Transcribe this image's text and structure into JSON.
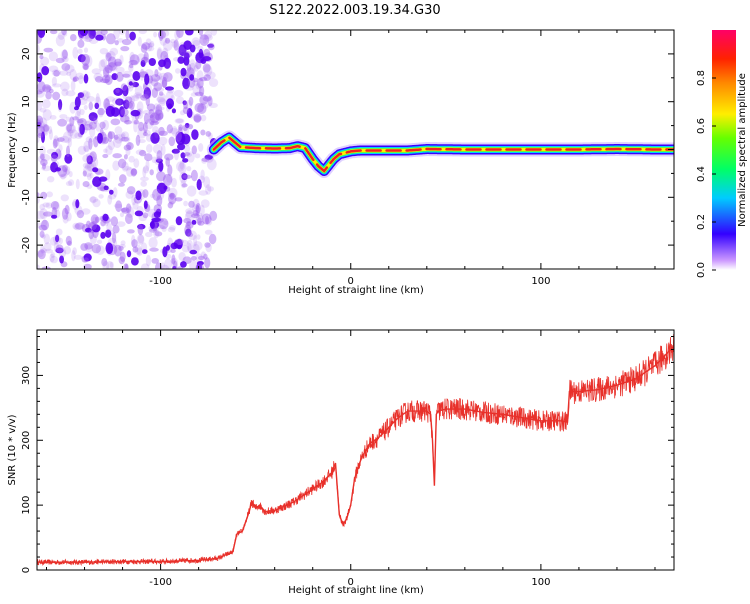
{
  "figure": {
    "title": "S122.2022.003.19.34.G30"
  },
  "chart_data": [
    {
      "type": "heatmap",
      "xlabel": "Height of straight line (km)",
      "ylabel": "Frequency (Hz)",
      "xlim": [
        -165,
        170
      ],
      "ylim": [
        -25,
        25
      ],
      "x_ticks": [
        -100,
        0,
        100
      ],
      "y_ticks": [
        -20,
        -10,
        0,
        10,
        20
      ],
      "x_tick_labels": [
        "-100",
        "0",
        "100"
      ],
      "y_tick_labels": [
        "-20",
        "-10",
        "0",
        "10",
        "20"
      ],
      "noise_region": {
        "x_from": -165,
        "x_to": -72,
        "description_color": "#6a00ff"
      },
      "ridge": {
        "x": [
          -72,
          -68,
          -64,
          -61,
          -58,
          -50,
          -40,
          -32,
          -28,
          -24,
          -20,
          -17,
          -14,
          -12,
          -9,
          -6,
          -3,
          0,
          5,
          10,
          20,
          30,
          40,
          60,
          80,
          100,
          120,
          140,
          160,
          170
        ],
        "y": [
          0,
          1.5,
          2.5,
          1.5,
          0.5,
          0.3,
          0.2,
          0.3,
          0.7,
          0.3,
          -2.0,
          -3.5,
          -4.5,
          -3.5,
          -2.0,
          -1.0,
          -0.7,
          -0.4,
          -0.2,
          -0.2,
          -0.2,
          -0.2,
          0.1,
          0.0,
          0.0,
          0.0,
          0.0,
          0.1,
          0.0,
          0.0
        ]
      },
      "colorbar": {
        "label": "Normalized spectral amplitude",
        "range": [
          0,
          1
        ],
        "ticks": [
          0.0,
          0.2,
          0.4,
          0.6,
          0.8
        ],
        "tick_labels": [
          "0.0",
          "0.2",
          "0.4",
          "0.6",
          "0.8"
        ]
      }
    },
    {
      "type": "line",
      "xlabel": "Height of straight line (km)",
      "ylabel": "SNR (10 * v/v)",
      "xlim": [
        -165,
        170
      ],
      "ylim": [
        0,
        370
      ],
      "x_ticks": [
        -100,
        0,
        100
      ],
      "y_ticks": [
        0,
        100,
        200,
        300
      ],
      "x_tick_labels": [
        "-100",
        "0",
        "100"
      ],
      "y_tick_labels": [
        "0",
        "100",
        "200",
        "300"
      ],
      "color": "#e8302a",
      "series": [
        {
          "x": [
            -165,
            -140,
            -120,
            -100,
            -80,
            -70,
            -62,
            -60,
            -57,
            -54,
            -52,
            -50,
            -48,
            -45,
            -40,
            -35,
            -30,
            -25,
            -20,
            -15,
            -10,
            -8,
            -6,
            -4,
            -2,
            0,
            2,
            4,
            6,
            8,
            10,
            15,
            20,
            25,
            30,
            35,
            40,
            42,
            43,
            44,
            45,
            46,
            50,
            60,
            70,
            80,
            90,
            100,
            110,
            114,
            115,
            120,
            130,
            140,
            150,
            160,
            165,
            170
          ],
          "y": [
            12,
            12,
            13,
            13,
            15,
            18,
            28,
            55,
            60,
            85,
            105,
            95,
            100,
            90,
            92,
            98,
            105,
            115,
            125,
            135,
            150,
            165,
            85,
            70,
            80,
            100,
            140,
            160,
            175,
            185,
            195,
            205,
            220,
            235,
            245,
            245,
            245,
            240,
            200,
            130,
            240,
            245,
            248,
            248,
            243,
            240,
            235,
            230,
            230,
            228,
            275,
            275,
            278,
            285,
            295,
            315,
            330,
            345
          ]
        }
      ]
    }
  ]
}
